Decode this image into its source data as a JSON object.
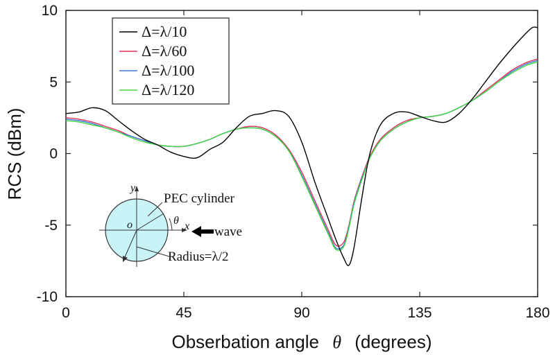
{
  "chart_data": {
    "type": "line",
    "xlabel": "Obserbation angle",
    "xlabel_symbol": "θ",
    "xlabel_unit": "(degrees)",
    "ylabel": "RCS  (dBm)",
    "xlim": [
      0,
      180
    ],
    "ylim": [
      -10,
      10
    ],
    "x_ticks": [
      0,
      45,
      90,
      135,
      180
    ],
    "y_ticks": [
      -10,
      -5,
      0,
      5,
      10
    ],
    "x_tick_labels": [
      "0",
      "45",
      "90",
      "135",
      "180"
    ],
    "y_tick_labels": [
      "-10",
      "-5",
      "0",
      "5",
      "10"
    ],
    "legend_position": "top-left",
    "series": [
      {
        "name": "Δ=λ/10",
        "color": "#000000",
        "x": [
          0,
          5,
          10,
          15,
          20,
          25,
          30,
          35,
          40,
          45,
          50,
          55,
          60,
          65,
          70,
          75,
          80,
          85,
          90,
          95,
          100,
          103,
          106,
          108,
          110,
          113,
          116,
          120,
          125,
          130,
          135,
          140,
          145,
          150,
          155,
          160,
          165,
          170,
          175,
          178,
          180
        ],
        "y": [
          2.8,
          2.9,
          3.2,
          3.0,
          2.3,
          1.6,
          1.0,
          0.6,
          0.1,
          -0.2,
          -0.3,
          0.3,
          0.8,
          1.8,
          2.6,
          2.8,
          3.0,
          2.6,
          0.8,
          -2.0,
          -4.5,
          -6.0,
          -7.3,
          -7.8,
          -6.5,
          -3.0,
          0.0,
          2.0,
          2.8,
          2.9,
          2.6,
          2.3,
          2.2,
          2.8,
          3.8,
          5.0,
          6.2,
          7.3,
          8.3,
          8.8,
          8.8
        ]
      },
      {
        "name": "Δ=λ/60",
        "color": "#e0305a",
        "x": [
          0,
          5,
          10,
          15,
          20,
          25,
          30,
          35,
          40,
          45,
          50,
          55,
          60,
          65,
          70,
          75,
          80,
          85,
          90,
          95,
          100,
          103,
          106,
          108,
          110,
          113,
          116,
          120,
          125,
          130,
          135,
          140,
          145,
          150,
          155,
          160,
          165,
          170,
          175,
          178,
          180
        ],
        "y": [
          2.5,
          2.4,
          2.2,
          1.9,
          1.6,
          1.2,
          0.9,
          0.6,
          0.5,
          0.5,
          0.7,
          1.0,
          1.4,
          1.7,
          1.9,
          1.8,
          1.3,
          0.3,
          -1.3,
          -3.3,
          -5.3,
          -6.4,
          -6.2,
          -5.0,
          -3.3,
          -1.6,
          -0.2,
          1.0,
          1.8,
          2.3,
          2.5,
          2.6,
          2.8,
          3.2,
          3.7,
          4.4,
          5.1,
          5.8,
          6.3,
          6.5,
          6.6
        ]
      },
      {
        "name": "Δ=λ/100",
        "color": "#3a78d8",
        "x": [
          0,
          5,
          10,
          15,
          20,
          25,
          30,
          35,
          40,
          45,
          50,
          55,
          60,
          65,
          70,
          75,
          80,
          85,
          90,
          95,
          100,
          103,
          106,
          108,
          110,
          113,
          116,
          120,
          125,
          130,
          135,
          140,
          145,
          150,
          155,
          160,
          165,
          170,
          175,
          178,
          180
        ],
        "y": [
          2.4,
          2.3,
          2.1,
          1.8,
          1.5,
          1.2,
          0.9,
          0.6,
          0.5,
          0.5,
          0.7,
          1.0,
          1.4,
          1.7,
          1.8,
          1.7,
          1.2,
          0.2,
          -1.5,
          -3.5,
          -5.5,
          -6.6,
          -6.4,
          -5.1,
          -3.4,
          -1.7,
          -0.3,
          0.9,
          1.7,
          2.2,
          2.5,
          2.6,
          2.8,
          3.2,
          3.7,
          4.3,
          5.0,
          5.7,
          6.2,
          6.4,
          6.5
        ]
      },
      {
        "name": "Δ=λ/120",
        "color": "#40d840",
        "x": [
          0,
          5,
          10,
          15,
          20,
          25,
          30,
          35,
          40,
          45,
          50,
          55,
          60,
          65,
          70,
          75,
          80,
          85,
          90,
          95,
          100,
          103,
          106,
          108,
          110,
          113,
          116,
          120,
          125,
          130,
          135,
          140,
          145,
          150,
          155,
          160,
          165,
          170,
          175,
          178,
          180
        ],
        "y": [
          2.3,
          2.2,
          2.0,
          1.8,
          1.5,
          1.1,
          0.8,
          0.6,
          0.5,
          0.5,
          0.7,
          1.0,
          1.4,
          1.7,
          1.8,
          1.7,
          1.2,
          0.2,
          -1.6,
          -3.6,
          -5.6,
          -6.7,
          -6.5,
          -5.2,
          -3.5,
          -1.8,
          -0.3,
          0.9,
          1.7,
          2.2,
          2.5,
          2.6,
          2.8,
          3.2,
          3.7,
          4.3,
          5.0,
          5.6,
          6.1,
          6.3,
          6.4
        ]
      }
    ],
    "inset": {
      "title": "PEC cylinder",
      "y_axis_label": "y",
      "x_axis_label": "x",
      "origin_label": "o",
      "angle_label": "θ",
      "wave_label": "wave",
      "radius_label": "Radius=λ/2",
      "fill_color": "#c8f4f8"
    }
  }
}
